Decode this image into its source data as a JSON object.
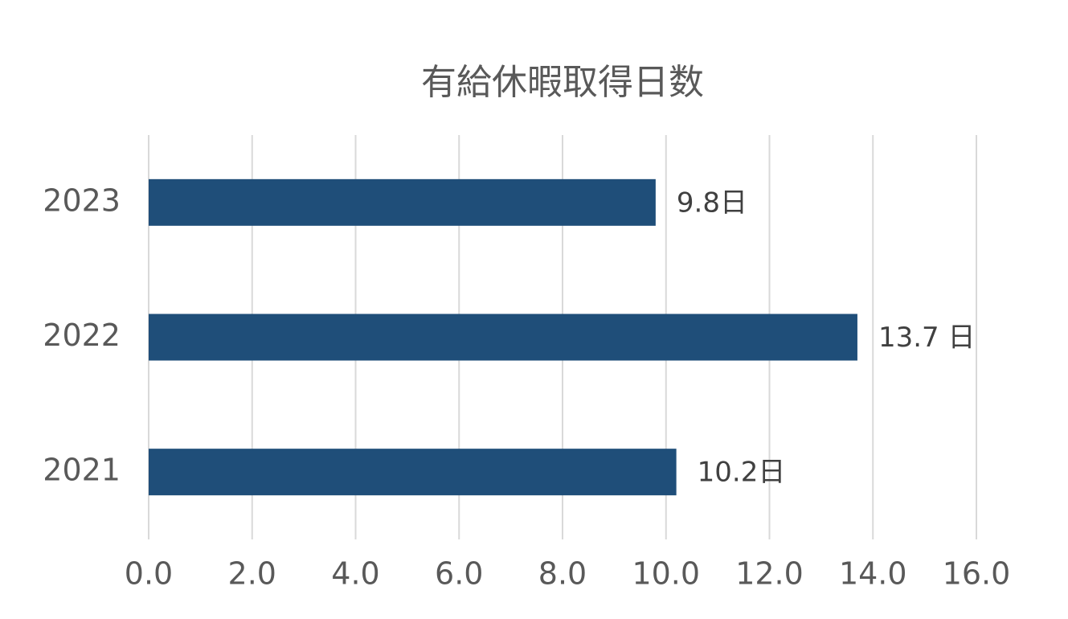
{
  "chart_data": {
    "type": "barh",
    "title": "有給休暇取得日数",
    "categories": [
      "2023",
      "2022",
      "2021"
    ],
    "values": [
      9.8,
      13.7,
      10.2
    ],
    "value_labels": [
      "9.8日",
      "13.7 日",
      "10.2日"
    ],
    "color": "#1f4e79",
    "xlim": [
      0,
      16
    ],
    "xticks": [
      {
        "value": 0,
        "label": "0.0"
      },
      {
        "value": 2,
        "label": "2.0"
      },
      {
        "value": 4,
        "label": "4.0"
      },
      {
        "value": 6,
        "label": "6.0"
      },
      {
        "value": 8,
        "label": "8.0"
      },
      {
        "value": 10,
        "label": "10.0"
      },
      {
        "value": 12,
        "label": "12.0"
      },
      {
        "value": 14,
        "label": "14.0"
      },
      {
        "value": 16,
        "label": "16.0"
      }
    ],
    "grid": true
  }
}
